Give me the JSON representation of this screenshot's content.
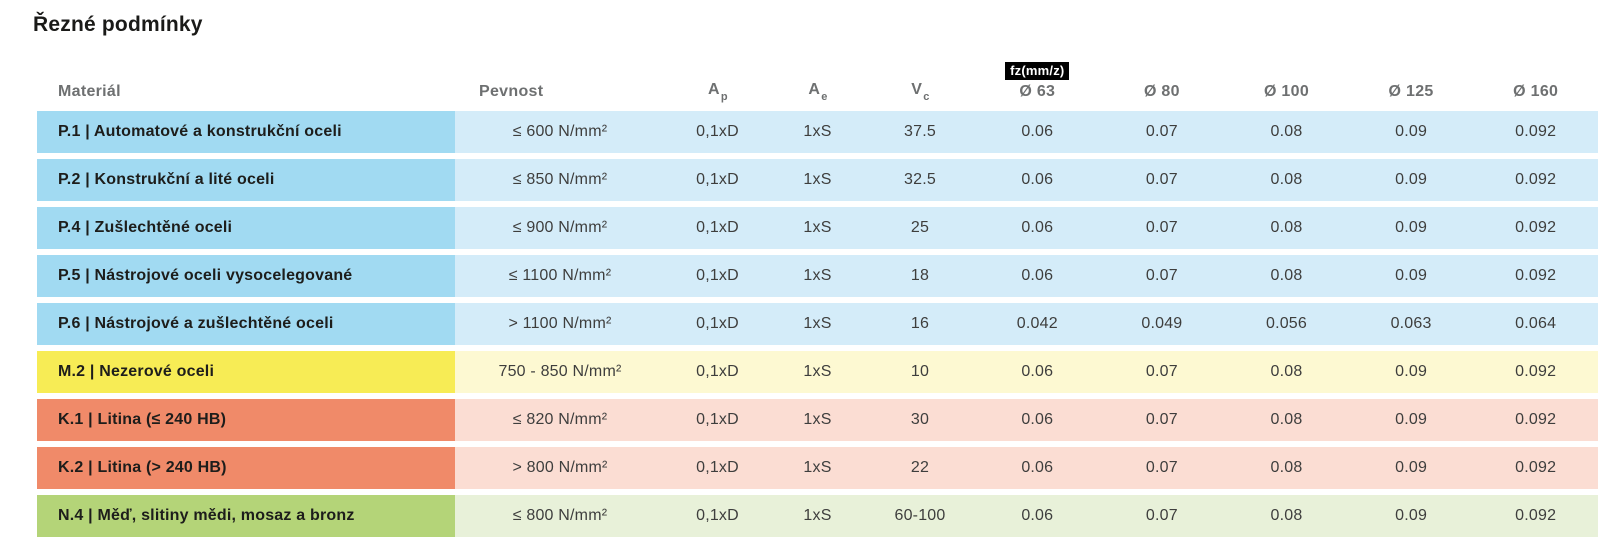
{
  "page": {
    "title": "Řezné podmínky"
  },
  "table": {
    "headers": {
      "material": "Materiál",
      "pevnost": "Pevnost",
      "ap_base": "A",
      "ap_sub": "p",
      "ae_base": "A",
      "ae_sub": "e",
      "vc_base": "V",
      "vc_sub": "c",
      "fz_badge": "fz(mm/z)",
      "diameters": [
        "Ø 63",
        "Ø 80",
        "Ø 100",
        "Ø 125",
        "Ø 160"
      ]
    },
    "colors": {
      "blue": {
        "dark": "#a1daf2",
        "light": "#d4ecf9"
      },
      "yellow": {
        "dark": "#f7ec55",
        "light": "#fdf9d2"
      },
      "salmon": {
        "dark": "#f08a69",
        "light": "#fbddd3"
      },
      "green": {
        "dark": "#b4d478",
        "light": "#e8f1d9"
      }
    },
    "rows": [
      {
        "material": "P.1 | Automatové a konstrukční oceli",
        "pevnost": "≤ 600 N/mm²",
        "ap": "0,1xD",
        "ae": "1xS",
        "vc": "37.5",
        "fz": [
          "0.06",
          "0.07",
          "0.08",
          "0.09",
          "0.092"
        ],
        "color_group": "blue"
      },
      {
        "material": "P.2 | Konstrukční a lité oceli",
        "pevnost": "≤ 850 N/mm²",
        "ap": "0,1xD",
        "ae": "1xS",
        "vc": "32.5",
        "fz": [
          "0.06",
          "0.07",
          "0.08",
          "0.09",
          "0.092"
        ],
        "color_group": "blue"
      },
      {
        "material": "P.4 | Zušlechtěné oceli",
        "pevnost": "≤ 900 N/mm²",
        "ap": "0,1xD",
        "ae": "1xS",
        "vc": "25",
        "fz": [
          "0.06",
          "0.07",
          "0.08",
          "0.09",
          "0.092"
        ],
        "color_group": "blue"
      },
      {
        "material": "P.5 | Nástrojové oceli vysocelegované",
        "pevnost": "≤ 1100 N/mm²",
        "ap": "0,1xD",
        "ae": "1xS",
        "vc": "18",
        "fz": [
          "0.06",
          "0.07",
          "0.08",
          "0.09",
          "0.092"
        ],
        "color_group": "blue"
      },
      {
        "material": "P.6 | Nástrojové a zušlechtěné oceli",
        "pevnost": "> 1100 N/mm²",
        "ap": "0,1xD",
        "ae": "1xS",
        "vc": "16",
        "fz": [
          "0.042",
          "0.049",
          "0.056",
          "0.063",
          "0.064"
        ],
        "color_group": "blue"
      },
      {
        "material": "M.2 | Nezerové oceli",
        "pevnost": "750 - 850 N/mm²",
        "ap": "0,1xD",
        "ae": "1xS",
        "vc": "10",
        "fz": [
          "0.06",
          "0.07",
          "0.08",
          "0.09",
          "0.092"
        ],
        "color_group": "yellow"
      },
      {
        "material": "K.1 | Litina (≤ 240 HB)",
        "pevnost": "≤ 820 N/mm²",
        "ap": "0,1xD",
        "ae": "1xS",
        "vc": "30",
        "fz": [
          "0.06",
          "0.07",
          "0.08",
          "0.09",
          "0.092"
        ],
        "color_group": "salmon"
      },
      {
        "material": "K.2 | Litina (> 240 HB)",
        "pevnost": "> 800 N/mm²",
        "ap": "0,1xD",
        "ae": "1xS",
        "vc": "22",
        "fz": [
          "0.06",
          "0.07",
          "0.08",
          "0.09",
          "0.092"
        ],
        "color_group": "salmon"
      },
      {
        "material": "N.4 | Měď, slitiny mědi, mosaz a bronz",
        "pevnost": "≤ 800 N/mm²",
        "ap": "0,1xD",
        "ae": "1xS",
        "vc": "60-100",
        "fz": [
          "0.06",
          "0.07",
          "0.08",
          "0.09",
          "0.092"
        ],
        "color_group": "green"
      }
    ]
  }
}
